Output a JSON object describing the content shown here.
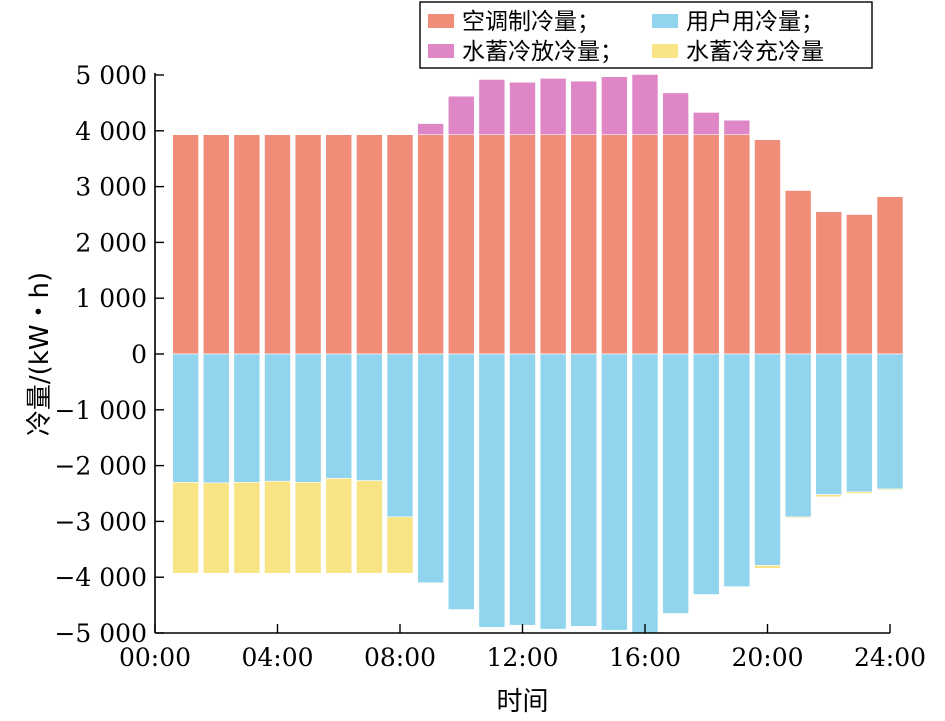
{
  "chart_data": {
    "type": "bar",
    "stacked": true,
    "xlabel": "时间",
    "ylabel": "冷量/(kW・h)",
    "x_ticks": [
      "00:00",
      "04:00",
      "08:00",
      "12:00",
      "16:00",
      "20:00",
      "24:00"
    ],
    "y_ticks": [
      "5 000",
      "4 000",
      "3 000",
      "2 000",
      "1 000",
      "0",
      "−1 000",
      "−2 000",
      "−3 000",
      "−4 000",
      "−5 000"
    ],
    "y_tick_values": [
      5000,
      4000,
      3000,
      2000,
      1000,
      0,
      -1000,
      -2000,
      -3000,
      -4000,
      -5000
    ],
    "ylim": [
      -5000,
      5000
    ],
    "xlim": [
      0,
      24
    ],
    "legend_position": "top-right",
    "hours": [
      1,
      2,
      3,
      4,
      5,
      6,
      7,
      8,
      9,
      10,
      11,
      12,
      13,
      14,
      15,
      16,
      17,
      18,
      19,
      20,
      21,
      22,
      23,
      24
    ],
    "series": [
      {
        "name": "空调制冷量；",
        "color": "#f08c78",
        "values": [
          3930,
          3930,
          3930,
          3930,
          3930,
          3930,
          3930,
          3930,
          3930,
          3930,
          3930,
          3930,
          3930,
          3930,
          3930,
          3930,
          3930,
          3930,
          3930,
          3840,
          2930,
          2550,
          2500,
          2820
        ]
      },
      {
        "name": "水蓄冷放冷量；",
        "color": "#de86c6",
        "values": [
          0,
          0,
          0,
          0,
          0,
          0,
          0,
          0,
          200,
          690,
          990,
          940,
          1010,
          960,
          1040,
          1080,
          750,
          400,
          260,
          0,
          0,
          0,
          0,
          0
        ]
      },
      {
        "name": "用户用冷量；",
        "color": "#90d4ee",
        "values": [
          -2300,
          -2310,
          -2300,
          -2280,
          -2300,
          -2230,
          -2270,
          -2920,
          -4100,
          -4580,
          -4900,
          -4860,
          -4930,
          -4880,
          -4950,
          -5000,
          -4650,
          -4310,
          -4170,
          -3790,
          -2920,
          -2520,
          -2470,
          -2420
        ]
      },
      {
        "name": "水蓄冷充冷量",
        "color": "#f8e484",
        "values": [
          -1630,
          -1620,
          -1630,
          -1650,
          -1630,
          -1700,
          -1660,
          -1010,
          0,
          0,
          0,
          0,
          0,
          0,
          0,
          0,
          0,
          0,
          0,
          -50,
          -20,
          -40,
          -30,
          -20
        ]
      }
    ],
    "legend_order": [
      0,
      2,
      1,
      3
    ]
  }
}
